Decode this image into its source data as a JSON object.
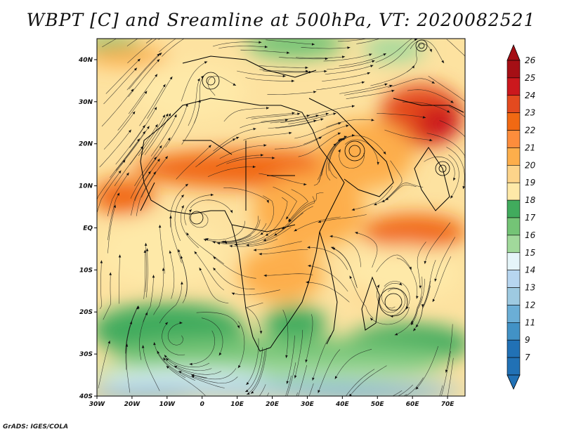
{
  "title": "WBPT [C] and Sreamline at 500hPa, VT: 2020082521",
  "credit": "GrADS: IGES/COLA",
  "map": {
    "lon_range": [
      -30,
      75
    ],
    "lat_range": [
      -40,
      45
    ],
    "lon_ticks": [
      -30,
      -20,
      -10,
      0,
      10,
      20,
      30,
      40,
      50,
      60,
      70
    ],
    "lon_labels": [
      "30W",
      "20W",
      "10W",
      "0",
      "10E",
      "20E",
      "30E",
      "40E",
      "50E",
      "60E",
      "70E"
    ],
    "lat_ticks": [
      -40,
      -30,
      -20,
      -10,
      0,
      10,
      20,
      30,
      40
    ],
    "lat_labels": [
      "40S",
      "30S",
      "20S",
      "10S",
      "EQ",
      "10N",
      "20N",
      "30N",
      "40N"
    ]
  },
  "colorbar": {
    "labels": [
      "26",
      "25",
      "24",
      "23",
      "22",
      "21",
      "20",
      "19",
      "18",
      "17",
      "16",
      "15",
      "14",
      "13",
      "12",
      "11",
      "9",
      "7"
    ],
    "colors": [
      "#a50f15",
      "#cb181d",
      "#e34a1f",
      "#f16913",
      "#fd8d3c",
      "#fdae4b",
      "#fdd48a",
      "#fee9a8",
      "#41ab5d",
      "#74c476",
      "#a1d99b",
      "#e5f5f9",
      "#b7d6f0",
      "#9ecae1",
      "#6baed6",
      "#4292c6",
      "#2171b5",
      "#2171b5"
    ]
  }
}
